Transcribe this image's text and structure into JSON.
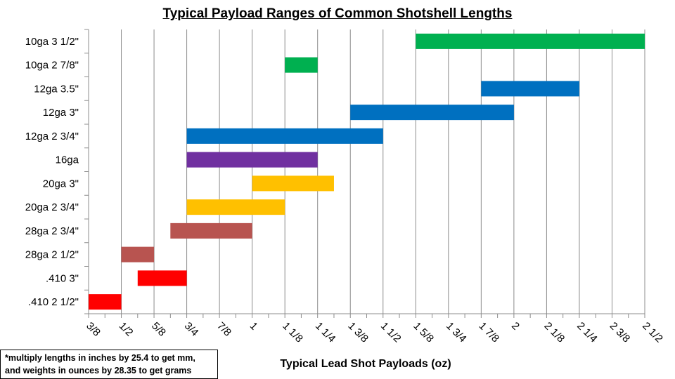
{
  "chart_data": {
    "type": "bar",
    "orientation": "horizontal-floating-range",
    "title": "Typical Payload Ranges of Common Shotshell Lengths",
    "xlabel": "Typical Lead Shot Payloads (oz)",
    "ylabel": "",
    "xlim": [
      0.375,
      2.5
    ],
    "grid": true,
    "x_ticks": [
      {
        "value": 0.375,
        "label": "3/8"
      },
      {
        "value": 0.5,
        "label": "1/2"
      },
      {
        "value": 0.625,
        "label": "5/8"
      },
      {
        "value": 0.75,
        "label": "3/4"
      },
      {
        "value": 0.875,
        "label": "7/8"
      },
      {
        "value": 1.0,
        "label": "1"
      },
      {
        "value": 1.125,
        "label": "1 1/8"
      },
      {
        "value": 1.25,
        "label": "1 1/4"
      },
      {
        "value": 1.375,
        "label": "1 3/8"
      },
      {
        "value": 1.5,
        "label": "1 1/2"
      },
      {
        "value": 1.625,
        "label": "1 5/8"
      },
      {
        "value": 1.75,
        "label": "1 3/4"
      },
      {
        "value": 1.875,
        "label": "1 7/8"
      },
      {
        "value": 2.0,
        "label": "2"
      },
      {
        "value": 2.125,
        "label": "2 1/8"
      },
      {
        "value": 2.25,
        "label": "2 1/4"
      },
      {
        "value": 2.375,
        "label": "2 3/8"
      },
      {
        "value": 2.5,
        "label": "2 1/2"
      }
    ],
    "categories": [
      {
        "label": "10ga 3 1/2\"",
        "min": 1.625,
        "max": 2.5,
        "color": "#00b050"
      },
      {
        "label": "10ga 2 7/8\"",
        "min": 1.125,
        "max": 1.25,
        "color": "#00b050"
      },
      {
        "label": "12ga 3.5\"",
        "min": 1.875,
        "max": 2.25,
        "color": "#0070c0"
      },
      {
        "label": "12ga 3\"",
        "min": 1.375,
        "max": 2.0,
        "color": "#0070c0"
      },
      {
        "label": "12ga 2 3/4\"",
        "min": 0.75,
        "max": 1.5,
        "color": "#0070c0"
      },
      {
        "label": "16ga",
        "min": 0.75,
        "max": 1.25,
        "color": "#7030a0"
      },
      {
        "label": "20ga 3\"",
        "min": 1.0,
        "max": 1.3125,
        "color": "#ffc000"
      },
      {
        "label": "20ga 2 3/4\"",
        "min": 0.75,
        "max": 1.125,
        "color": "#ffc000"
      },
      {
        "label": "28ga 2 3/4\"",
        "min": 0.6875,
        "max": 1.0,
        "color": "#b85450"
      },
      {
        "label": "28ga 2 1/2\"",
        "min": 0.5,
        "max": 0.625,
        "color": "#b85450"
      },
      {
        "label": ".410 3\"",
        "min": 0.5625,
        "max": 0.75,
        "color": "#ff0000"
      },
      {
        "label": ".410 2 1/2\"",
        "min": 0.375,
        "max": 0.5,
        "color": "#ff0000"
      }
    ]
  },
  "note": {
    "line1": "*multiply lengths in inches by 25.4 to get mm,",
    "line2": "and weights in ounces by 28.35 to get grams"
  }
}
